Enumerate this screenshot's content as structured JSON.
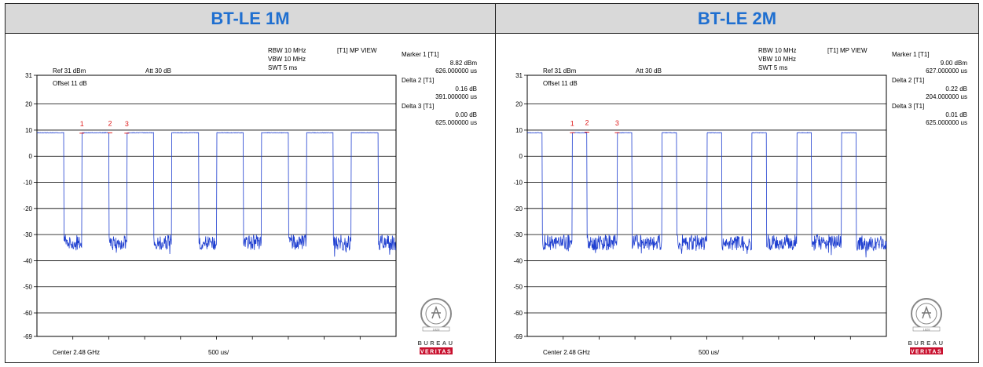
{
  "panels": [
    {
      "header": "BT-LE 1M",
      "instrument": {
        "rbw": "RBW 10 MHz",
        "vbw": "VBW 10 MHz",
        "swt": "SWT 5 ms",
        "view": "[T1] MP VIEW",
        "ref": "Ref 31 dBm",
        "att": "Att  30 dB",
        "offset": "Offset 11 dB",
        "center": "Center 2.48 GHz",
        "span_div": "500 us/"
      },
      "markers": [
        {
          "title": "Marker 1 [T1]",
          "value": "8.82 dBm",
          "time": "626.000000 us"
        },
        {
          "title": "Delta 2 [T1]",
          "value": "0.16 dB",
          "time": "391.000000 us"
        },
        {
          "title": "Delta 3 [T1]",
          "value": "0.00 dB",
          "time": "625.000000 us"
        }
      ]
    },
    {
      "header": "BT-LE 2M",
      "instrument": {
        "rbw": "RBW 10 MHz",
        "vbw": "VBW 10 MHz",
        "swt": "SWT 5 ms",
        "view": "[T1] MP VIEW",
        "ref": "Ref 31 dBm",
        "att": "Att  30 dB",
        "offset": "Offset 11 dB",
        "center": "Center 2.48 GHz",
        "span_div": "500 us/"
      },
      "markers": [
        {
          "title": "Marker 1 [T1]",
          "value": "9.00 dBm",
          "time": "627.000000 us"
        },
        {
          "title": "Delta 2 [T1]",
          "value": "0.22 dB",
          "time": "204.000000 us"
        },
        {
          "title": "Delta 3 [T1]",
          "value": "0.01 dB",
          "time": "625.000000 us"
        }
      ]
    }
  ],
  "logo": {
    "line1": "BUREAU",
    "line2": "VERITAS",
    "year": "1828"
  },
  "colors": {
    "header_text": "#1f6fd0",
    "header_bg": "#d9d9d9",
    "trace": "#1f3fd0",
    "marker": "#e02020",
    "logo_red": "#c8102e"
  },
  "chart_data": [
    {
      "type": "line",
      "title": "BT-LE 1M",
      "xlabel": "Center 2.48 GHz",
      "ylabel": "",
      "x_unit": "us",
      "ylim": [
        -69,
        31
      ],
      "xlim": [
        0,
        5000
      ],
      "y_ticks": [
        31,
        20,
        10,
        0,
        -10,
        -20,
        -30,
        -40,
        -50,
        -60,
        -69
      ],
      "reference_line": 10,
      "grid": true,
      "high_level_dbm": 9,
      "noise_floor_dbm": [
        -40,
        -30
      ],
      "bursts_us": [
        [
          0,
          376
        ],
        [
          626,
          1002
        ],
        [
          1251,
          1627
        ],
        [
          1876,
          2252
        ],
        [
          2501,
          2877
        ],
        [
          3126,
          3502
        ],
        [
          3751,
          4127
        ],
        [
          4376,
          4752
        ]
      ],
      "markers": [
        {
          "label": "1",
          "x": 626,
          "y": 8.82
        },
        {
          "label": "2",
          "x": 1017,
          "y": 8.98
        },
        {
          "label": "3",
          "x": 1251,
          "y": 8.82
        }
      ]
    },
    {
      "type": "line",
      "title": "BT-LE 2M",
      "xlabel": "Center 2.48 GHz",
      "ylabel": "",
      "x_unit": "us",
      "ylim": [
        -69,
        31
      ],
      "xlim": [
        0,
        5000
      ],
      "y_ticks": [
        31,
        20,
        10,
        0,
        -10,
        -20,
        -30,
        -40,
        -50,
        -60,
        -69
      ],
      "reference_line": 10,
      "grid": true,
      "high_level_dbm": 9,
      "noise_floor_dbm": [
        -40,
        -30
      ],
      "bursts_us": [
        [
          0,
          206
        ],
        [
          627,
          833
        ],
        [
          1252,
          1458
        ],
        [
          1877,
          2083
        ],
        [
          2502,
          2708
        ],
        [
          3127,
          3333
        ],
        [
          3752,
          3958
        ],
        [
          4377,
          4583
        ]
      ],
      "markers": [
        {
          "label": "1",
          "x": 627,
          "y": 9.0
        },
        {
          "label": "2",
          "x": 831,
          "y": 9.22
        },
        {
          "label": "3",
          "x": 1252,
          "y": 9.01
        }
      ]
    }
  ]
}
